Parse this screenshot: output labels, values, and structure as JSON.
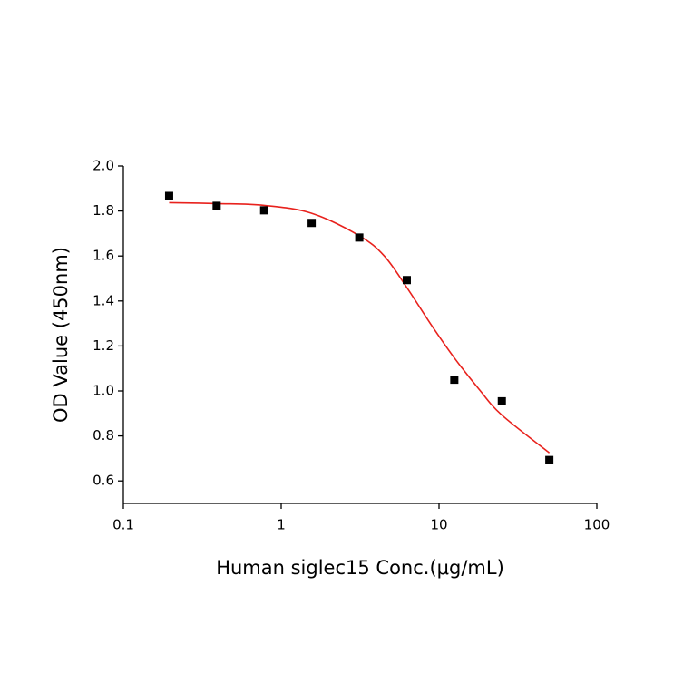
{
  "chart_data": {
    "type": "scatter",
    "x_label": "Human siglec15 Conc.(μg/mL)",
    "y_label": "OD Value (450nm)",
    "xscale": "log",
    "xlim": [
      0.1,
      100
    ],
    "xticks": [
      0.1,
      1,
      10,
      100
    ],
    "ylim": [
      0.5,
      2.0
    ],
    "yticks": [
      {
        "value": 0.6,
        "label": "0.6"
      },
      {
        "value": 0.8,
        "label": "0.8"
      },
      {
        "value": 1.0,
        "label": "1.0"
      },
      {
        "value": 1.2,
        "label": "1.2"
      },
      {
        "value": 1.4,
        "label": "1.4"
      },
      {
        "value": 1.6,
        "label": "1.6"
      },
      {
        "value": 1.8,
        "label": "1.8"
      },
      {
        "value": 2.0,
        "label": "2.0"
      }
    ],
    "series": [
      {
        "type": "scatter",
        "color": "#000000",
        "x": [
          0.195,
          0.39,
          0.78,
          1.56,
          3.125,
          6.25,
          12.5,
          25,
          50
        ],
        "values": [
          1.867,
          1.823,
          1.803,
          1.747,
          1.682,
          1.493,
          1.05,
          0.954,
          0.693
        ]
      },
      {
        "type": "line",
        "color": "#e8221d",
        "x": [
          0.195,
          0.39,
          0.78,
          1.56,
          3.125,
          4.5,
          6.25,
          9,
          12.5,
          18,
          25,
          50
        ],
        "values": [
          1.837,
          1.833,
          1.825,
          1.79,
          1.69,
          1.6,
          1.46,
          1.29,
          1.147,
          1.006,
          0.893,
          0.725
        ]
      }
    ]
  }
}
